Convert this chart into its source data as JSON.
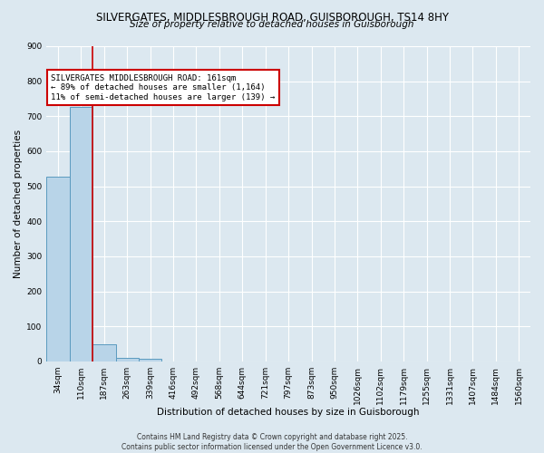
{
  "title1": "SILVERGATES, MIDDLESBROUGH ROAD, GUISBOROUGH, TS14 8HY",
  "title2": "Size of property relative to detached houses in Guisborough",
  "xlabel": "Distribution of detached houses by size in Guisborough",
  "ylabel": "Number of detached properties",
  "categories": [
    "34sqm",
    "110sqm",
    "187sqm",
    "263sqm",
    "339sqm",
    "416sqm",
    "492sqm",
    "568sqm",
    "644sqm",
    "721sqm",
    "797sqm",
    "873sqm",
    "950sqm",
    "1026sqm",
    "1102sqm",
    "1179sqm",
    "1255sqm",
    "1331sqm",
    "1407sqm",
    "1484sqm",
    "1560sqm"
  ],
  "values": [
    527,
    727,
    48,
    10,
    8,
    0,
    0,
    0,
    0,
    0,
    0,
    0,
    0,
    0,
    0,
    0,
    0,
    0,
    0,
    0,
    0
  ],
  "bar_color": "#b8d4e8",
  "bar_edge_color": "#5a9abf",
  "red_line_x": 1.5,
  "annotation_text": "SILVERGATES MIDDLESBROUGH ROAD: 161sqm\n← 89% of detached houses are smaller (1,164)\n11% of semi-detached houses are larger (139) →",
  "annotation_box_color": "#ffffff",
  "annotation_border_color": "#cc0000",
  "background_color": "#dce8f0",
  "grid_color": "#ffffff",
  "footer_text": "Contains HM Land Registry data © Crown copyright and database right 2025.\nContains public sector information licensed under the Open Government Licence v3.0.",
  "ylim": [
    0,
    900
  ],
  "yticks": [
    0,
    100,
    200,
    300,
    400,
    500,
    600,
    700,
    800,
    900
  ],
  "title1_fontsize": 8.5,
  "title2_fontsize": 7.5,
  "xlabel_fontsize": 7.5,
  "ylabel_fontsize": 7.5,
  "tick_fontsize": 6.5,
  "annotation_fontsize": 6.5,
  "footer_fontsize": 5.5
}
